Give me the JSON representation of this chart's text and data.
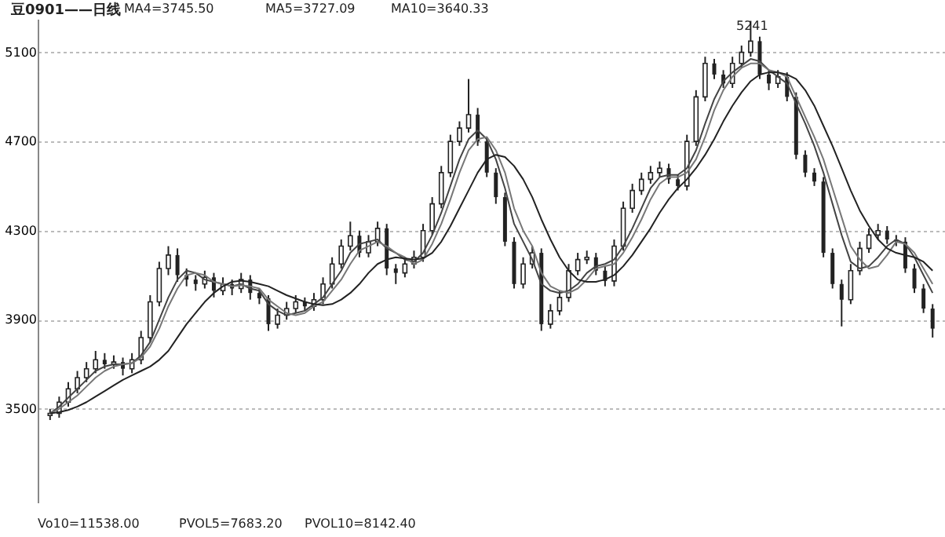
{
  "chart_data": {
    "type": "candlestick",
    "title": "豆0901——日线",
    "categories": [
      null,
      null,
      null,
      null,
      null,
      null,
      null,
      null,
      null,
      null,
      null,
      null,
      null,
      null,
      null,
      null,
      null,
      null,
      null,
      null,
      null,
      null,
      null,
      null,
      null,
      null,
      null,
      null,
      null,
      null,
      null,
      null,
      null,
      null,
      null,
      null,
      null,
      null,
      null,
      null,
      null,
      null,
      null,
      null,
      null,
      null,
      null,
      null,
      null,
      null,
      null,
      null,
      null,
      null,
      null,
      null,
      null,
      null,
      null,
      null,
      null,
      null,
      null,
      null,
      null,
      null,
      null,
      null,
      null,
      null,
      null,
      null,
      null,
      null,
      null,
      null,
      null,
      null,
      null,
      null,
      null,
      null,
      null,
      null,
      null,
      null,
      null,
      null,
      null,
      null,
      null,
      null,
      null,
      null,
      null,
      null,
      null,
      null
    ],
    "ohlc": [
      [
        3470,
        3500,
        3450,
        3480
      ],
      [
        3480,
        3555,
        3460,
        3530
      ],
      [
        3530,
        3620,
        3510,
        3590
      ],
      [
        3590,
        3670,
        3570,
        3640
      ],
      [
        3640,
        3710,
        3620,
        3680
      ],
      [
        3680,
        3760,
        3660,
        3720
      ],
      [
        3720,
        3750,
        3680,
        3700
      ],
      [
        3700,
        3740,
        3680,
        3710
      ],
      [
        3710,
        3730,
        3650,
        3680
      ],
      [
        3680,
        3750,
        3660,
        3720
      ],
      [
        3720,
        3850,
        3700,
        3820
      ],
      [
        3820,
        4010,
        3800,
        3980
      ],
      [
        3980,
        4160,
        3960,
        4130
      ],
      [
        4130,
        4230,
        4100,
        4190
      ],
      [
        4190,
        4220,
        4070,
        4100
      ],
      [
        4100,
        4130,
        4050,
        4080
      ],
      [
        4080,
        4100,
        4030,
        4060
      ],
      [
        4060,
        4120,
        4040,
        4090
      ],
      [
        4090,
        4110,
        4000,
        4030
      ],
      [
        4030,
        4090,
        4010,
        4060
      ],
      [
        4060,
        4080,
        4010,
        4040
      ],
      [
        4040,
        4110,
        4020,
        4080
      ],
      [
        4080,
        4100,
        3990,
        4020
      ],
      [
        4020,
        4040,
        3970,
        3996
      ],
      [
        3996,
        4010,
        3850,
        3880
      ],
      [
        3880,
        3950,
        3860,
        3920
      ],
      [
        3920,
        3980,
        3900,
        3950
      ],
      [
        3950,
        4010,
        3930,
        3980
      ],
      [
        3980,
        4000,
        3940,
        3960
      ],
      [
        3960,
        4020,
        3940,
        3990
      ],
      [
        3990,
        4090,
        3970,
        4060
      ],
      [
        4060,
        4180,
        4040,
        4150
      ],
      [
        4150,
        4260,
        4130,
        4230
      ],
      [
        4230,
        4340,
        4210,
        4277
      ],
      [
        4277,
        4300,
        4180,
        4200
      ],
      [
        4200,
        4280,
        4180,
        4250
      ],
      [
        4250,
        4340,
        4230,
        4310
      ],
      [
        4310,
        4330,
        4100,
        4130
      ],
      [
        4130,
        4150,
        4060,
        4110
      ],
      [
        4110,
        4180,
        4090,
        4150
      ],
      [
        4150,
        4210,
        4130,
        4180
      ],
      [
        4180,
        4330,
        4160,
        4300
      ],
      [
        4300,
        4450,
        4280,
        4420
      ],
      [
        4420,
        4590,
        4400,
        4560
      ],
      [
        4560,
        4730,
        4540,
        4700
      ],
      [
        4700,
        4790,
        4680,
        4760
      ],
      [
        4760,
        4980,
        4740,
        4820
      ],
      [
        4820,
        4850,
        4680,
        4700
      ],
      [
        4700,
        4720,
        4540,
        4560
      ],
      [
        4560,
        4580,
        4420,
        4450
      ],
      [
        4450,
        4470,
        4230,
        4250
      ],
      [
        4250,
        4270,
        4040,
        4060
      ],
      [
        4060,
        4180,
        4040,
        4150
      ],
      [
        4150,
        4230,
        4130,
        4200
      ],
      [
        4200,
        4220,
        3850,
        3880
      ],
      [
        3880,
        3970,
        3860,
        3940
      ],
      [
        3940,
        4030,
        3920,
        4000
      ],
      [
        4000,
        4150,
        3980,
        4120
      ],
      [
        4120,
        4200,
        4100,
        4170
      ],
      [
        4170,
        4210,
        4150,
        4180
      ],
      [
        4180,
        4200,
        4100,
        4120
      ],
      [
        4120,
        4140,
        4050,
        4074
      ],
      [
        4074,
        4260,
        4050,
        4230
      ],
      [
        4230,
        4430,
        4210,
        4400
      ],
      [
        4400,
        4510,
        4380,
        4480
      ],
      [
        4480,
        4560,
        4460,
        4530
      ],
      [
        4530,
        4590,
        4510,
        4560
      ],
      [
        4560,
        4610,
        4540,
        4580
      ],
      [
        4580,
        4600,
        4510,
        4530
      ],
      [
        4530,
        4550,
        4480,
        4500
      ],
      [
        4500,
        4730,
        4480,
        4700
      ],
      [
        4700,
        4930,
        4680,
        4900
      ],
      [
        4900,
        5080,
        4880,
        5050
      ],
      [
        5050,
        5070,
        4980,
        5000
      ],
      [
        5000,
        5020,
        4940,
        4960
      ],
      [
        4960,
        5080,
        4940,
        5050
      ],
      [
        5050,
        5130,
        5030,
        5100
      ],
      [
        5100,
        5241,
        5080,
        5150
      ],
      [
        5150,
        5170,
        4980,
        5000
      ],
      [
        5000,
        5020,
        4930,
        4960
      ],
      [
        4960,
        5020,
        4940,
        4990
      ],
      [
        4990,
        5010,
        4880,
        4900
      ],
      [
        4900,
        4920,
        4620,
        4640
      ],
      [
        4640,
        4660,
        4540,
        4560
      ],
      [
        4560,
        4580,
        4500,
        4520
      ],
      [
        4520,
        4540,
        4180,
        4200
      ],
      [
        4200,
        4220,
        4040,
        4060
      ],
      [
        4060,
        4080,
        3870,
        3990
      ],
      [
        3990,
        4150,
        3970,
        4120
      ],
      [
        4120,
        4250,
        4100,
        4220
      ],
      [
        4220,
        4310,
        4200,
        4280
      ],
      [
        4280,
        4330,
        4260,
        4300
      ],
      [
        4300,
        4320,
        4240,
        4260
      ],
      [
        4260,
        4280,
        4230,
        4250
      ],
      [
        4250,
        4270,
        4110,
        4130
      ],
      [
        4130,
        4150,
        4020,
        4040
      ],
      [
        4040,
        4060,
        3930,
        3950
      ],
      [
        3950,
        3970,
        3820,
        3860
      ]
    ],
    "series": [
      {
        "type": "line",
        "color": "#444444",
        "values": [
          3480,
          3510,
          3550,
          3590,
          3630,
          3670,
          3690,
          3700,
          3700,
          3705,
          3740,
          3800,
          3900,
          4000,
          4080,
          4120,
          4110,
          4080,
          4070,
          4060,
          4050,
          4060,
          4040,
          4030,
          3970,
          3940,
          3920,
          3930,
          3940,
          3970,
          4000,
          4060,
          4120,
          4200,
          4240,
          4250,
          4260,
          4220,
          4200,
          4170,
          4160,
          4200,
          4280,
          4380,
          4500,
          4620,
          4710,
          4750,
          4710,
          4620,
          4490,
          4330,
          4250,
          4170,
          4060,
          4030,
          4020,
          4030,
          4060,
          4110,
          4140,
          4150,
          4170,
          4230,
          4310,
          4400,
          4490,
          4540,
          4550,
          4550,
          4580,
          4660,
          4780,
          4890,
          4970,
          5010,
          5040,
          5070,
          5060,
          5020,
          4990,
          4960,
          4870,
          4780,
          4680,
          4560,
          4420,
          4280,
          4160,
          4130,
          4140,
          4180,
          4230,
          4260,
          4240,
          4180,
          4100,
          4020
        ]
      },
      {
        "type": "line",
        "color": "#777777",
        "values": [
          3480,
          3500,
          3530,
          3560,
          3600,
          3640,
          3670,
          3690,
          3700,
          3705,
          3730,
          3780,
          3860,
          3960,
          4040,
          4100,
          4110,
          4100,
          4070,
          4060,
          4050,
          4055,
          4050,
          4040,
          3990,
          3960,
          3930,
          3920,
          3930,
          3960,
          3980,
          4030,
          4080,
          4150,
          4210,
          4230,
          4250,
          4230,
          4200,
          4180,
          4150,
          4170,
          4240,
          4330,
          4440,
          4560,
          4660,
          4710,
          4720,
          4660,
          4560,
          4400,
          4300,
          4230,
          4110,
          4050,
          4030,
          4020,
          4040,
          4080,
          4130,
          4140,
          4150,
          4200,
          4270,
          4350,
          4440,
          4510,
          4540,
          4540,
          4560,
          4620,
          4720,
          4840,
          4930,
          4990,
          5030,
          5050,
          5050,
          5020,
          5010,
          4990,
          4900,
          4810,
          4720,
          4620,
          4490,
          4360,
          4230,
          4170,
          4130,
          4140,
          4190,
          4250,
          4240,
          4200,
          4130,
          4060
        ]
      },
      {
        "type": "line",
        "color": "#222222",
        "values": [
          3480,
          3485,
          3495,
          3510,
          3530,
          3555,
          3580,
          3605,
          3630,
          3650,
          3670,
          3690,
          3720,
          3760,
          3820,
          3880,
          3930,
          3980,
          4020,
          4050,
          4070,
          4075,
          4070,
          4060,
          4050,
          4030,
          4010,
          3995,
          3980,
          3970,
          3965,
          3970,
          3990,
          4020,
          4060,
          4110,
          4150,
          4170,
          4180,
          4175,
          4170,
          4175,
          4200,
          4250,
          4320,
          4400,
          4480,
          4560,
          4620,
          4640,
          4630,
          4590,
          4530,
          4450,
          4350,
          4260,
          4180,
          4120,
          4080,
          4070,
          4070,
          4080,
          4100,
          4140,
          4190,
          4250,
          4310,
          4380,
          4440,
          4490,
          4530,
          4580,
          4640,
          4710,
          4790,
          4860,
          4920,
          4970,
          5000,
          5010,
          5010,
          5000,
          4980,
          4930,
          4860,
          4770,
          4680,
          4580,
          4480,
          4390,
          4320,
          4260,
          4220,
          4200,
          4190,
          4180,
          4160,
          4120
        ]
      }
    ],
    "ylim": [
      3080,
      5250
    ],
    "yticks": [
      3500,
      3900,
      4300,
      4700,
      5100
    ],
    "grid": "y",
    "marker": "none",
    "tick_labels": "y",
    "annotations": [
      "MA4=3745.50",
      "MA5=3727.09",
      "MA10=3640.33",
      "Vo10=11538.00",
      "PVOL5=7683.20",
      "PVOL10=8142.40",
      "5241"
    ]
  }
}
